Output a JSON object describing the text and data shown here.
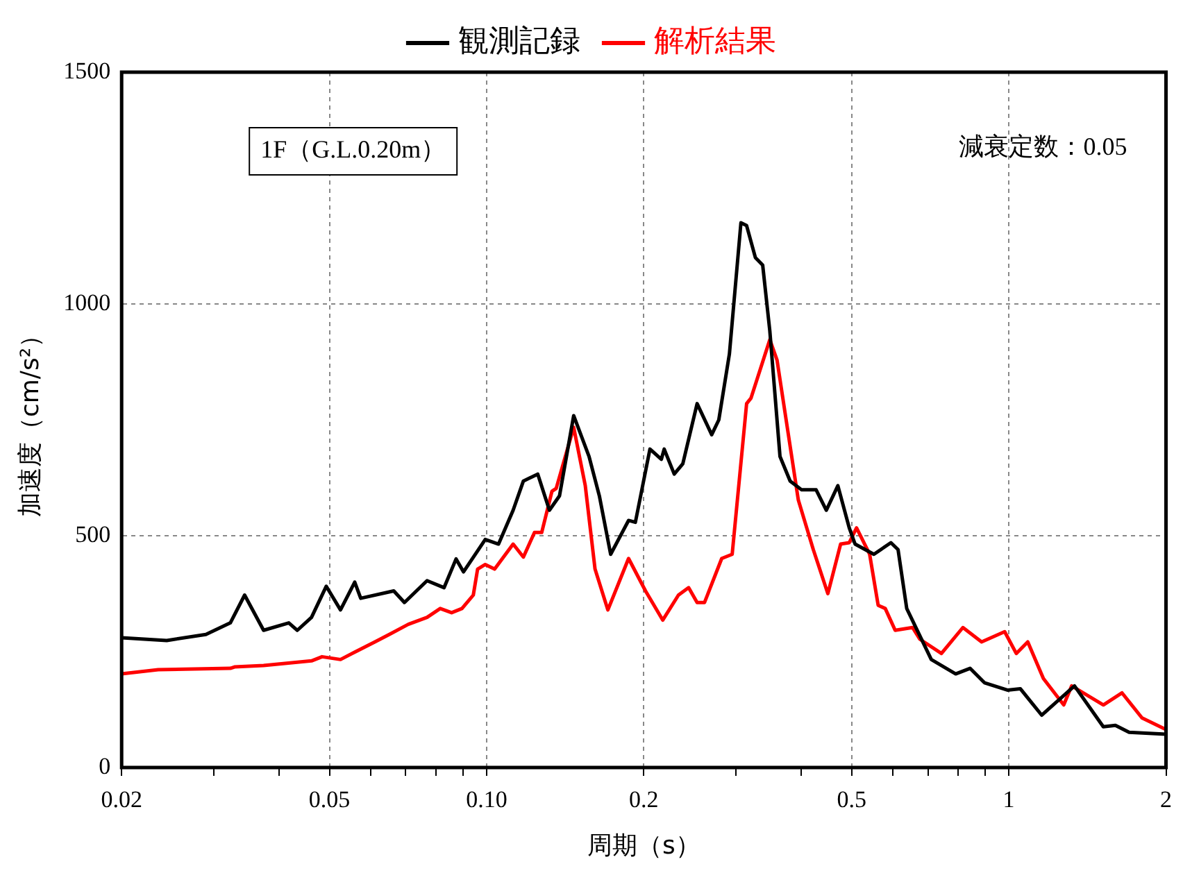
{
  "chart_data": {
    "type": "line",
    "xlabel": "周期（s）",
    "ylabel": "加速度（cm/s²）",
    "annotations": [
      "1F（G.L.0.20m）",
      "減衰定数：0.05"
    ],
    "log": "x",
    "grid": true,
    "legend": "top",
    "marker": "none",
    "line_style": "solid",
    "xlim": [
      0.02,
      2
    ],
    "ylim": [
      0,
      1500
    ],
    "xticks": [
      0.02,
      {
        "value": 0.03,
        "label": null
      },
      {
        "value": 0.04,
        "label": null
      },
      {
        "value": 0.05,
        "label": "0.05"
      },
      {
        "value": 0.06,
        "label": null
      },
      {
        "value": 0.07,
        "label": null
      },
      {
        "value": 0.08,
        "label": null
      },
      {
        "value": 0.09,
        "label": null
      },
      {
        "value": 0.1,
        "label": "0.10"
      },
      0.2,
      {
        "value": 0.3,
        "label": null
      },
      {
        "value": 0.4,
        "label": null
      },
      0.5,
      {
        "value": 0.6,
        "label": null
      },
      {
        "value": 0.7,
        "label": null
      },
      {
        "value": 0.8,
        "label": null
      },
      {
        "value": 0.9,
        "label": null
      },
      1,
      2
    ],
    "yticks": [
      0,
      500,
      1000,
      1500
    ],
    "series": [
      {
        "name": "観測記録",
        "color": "#000000",
        "x": [
          0.02,
          0.0244,
          0.029,
          0.0323,
          0.0344,
          0.0374,
          0.0418,
          0.0434,
          0.0462,
          0.0493,
          0.0525,
          0.0559,
          0.0574,
          0.0664,
          0.0696,
          0.0769,
          0.0829,
          0.0874,
          0.0903,
          0.0994,
          0.1054,
          0.1124,
          0.1176,
          0.1253,
          0.1319,
          0.1379,
          0.1468,
          0.1571,
          0.1644,
          0.1728,
          0.187,
          0.1927,
          0.2055,
          0.2161,
          0.2188,
          0.2287,
          0.2375,
          0.253,
          0.2698,
          0.2784,
          0.2917,
          0.3069,
          0.3147,
          0.3271,
          0.3378,
          0.3486,
          0.3646,
          0.3813,
          0.4012,
          0.4276,
          0.4473,
          0.4706,
          0.4948,
          0.5077,
          0.5516,
          0.5946,
          0.6137,
          0.6376,
          0.7105,
          0.7912,
          0.843,
          0.8982,
          0.9938,
          1.052,
          1.156,
          1.336,
          1.517,
          1.6,
          1.7,
          2.0
        ],
        "values": [
          280,
          274,
          287,
          312,
          372,
          296,
          312,
          296,
          324,
          391,
          340,
          400,
          365,
          381,
          356,
          403,
          388,
          450,
          422,
          492,
          482,
          555,
          618,
          633,
          555,
          586,
          759,
          671,
          586,
          460,
          533,
          529,
          687,
          665,
          687,
          633,
          655,
          785,
          718,
          750,
          892,
          1175,
          1169,
          1100,
          1084,
          942,
          671,
          618,
          599,
          599,
          555,
          608,
          517,
          482,
          460,
          485,
          470,
          343,
          233,
          202,
          214,
          183,
          167,
          170,
          113,
          176,
          88,
          91,
          76,
          72
        ]
      },
      {
        "name": "解析結果",
        "color": "#ff0000",
        "x": [
          0.02,
          0.0235,
          0.0323,
          0.0329,
          0.0374,
          0.0462,
          0.0484,
          0.0525,
          0.0559,
          0.0611,
          0.0651,
          0.0708,
          0.0769,
          0.0815,
          0.0857,
          0.0897,
          0.0943,
          0.0961,
          0.0994,
          0.1036,
          0.1124,
          0.1176,
          0.1235,
          0.1275,
          0.1334,
          0.1359,
          0.1468,
          0.1545,
          0.1613,
          0.1707,
          0.187,
          0.2015,
          0.2174,
          0.233,
          0.2437,
          0.253,
          0.2614,
          0.282,
          0.2953,
          0.3147,
          0.3209,
          0.3486,
          0.3599,
          0.3953,
          0.4223,
          0.4503,
          0.4763,
          0.4948,
          0.511,
          0.5414,
          0.5621,
          0.58,
          0.6059,
          0.6541,
          0.6753,
          0.743,
          0.8168,
          0.887,
          0.9819,
          1.0335,
          1.0873,
          1.1648,
          1.2741,
          1.3192,
          1.5175,
          1.6475,
          1.7991,
          2.0
        ],
        "values": [
          202,
          211,
          214,
          217,
          220,
          230,
          239,
          233,
          249,
          271,
          287,
          309,
          324,
          343,
          334,
          343,
          372,
          428,
          438,
          428,
          482,
          454,
          507,
          507,
          596,
          602,
          734,
          608,
          428,
          340,
          451,
          381,
          318,
          372,
          388,
          356,
          356,
          451,
          460,
          785,
          797,
          923,
          879,
          577,
          470,
          375,
          482,
          485,
          517,
          460,
          350,
          343,
          296,
          302,
          277,
          246,
          302,
          271,
          293,
          246,
          271,
          192,
          135,
          176,
          135,
          161,
          107,
          82
        ]
      }
    ]
  }
}
